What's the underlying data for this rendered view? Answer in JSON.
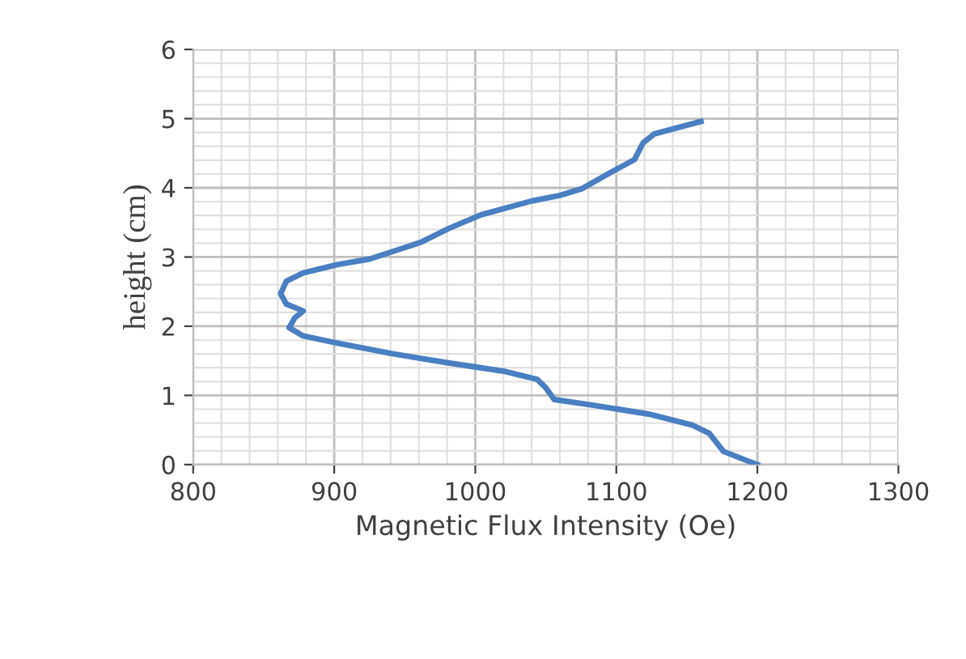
{
  "chart_data": {
    "type": "line",
    "xlabel": "Magnetic Flux Intensity (Oe)",
    "ylabel": "height (cm)",
    "x": [
      1200,
      1176,
      1166,
      1154,
      1123,
      1083,
      1056,
      1050,
      1044,
      1020,
      981,
      942,
      901,
      878,
      868,
      872,
      878,
      866,
      862,
      866,
      878,
      902,
      925,
      961,
      981,
      1004,
      1040,
      1060,
      1076,
      1095,
      1113,
      1119,
      1127,
      1160
    ],
    "series": [
      {
        "color": "#4a7fc1",
        "values": [
          0,
          0.19,
          0.45,
          0.57,
          0.73,
          0.86,
          0.94,
          1.11,
          1.23,
          1.35,
          1.47,
          1.6,
          1.76,
          1.86,
          1.98,
          2.12,
          2.22,
          2.32,
          2.47,
          2.65,
          2.77,
          2.89,
          2.97,
          3.21,
          3.41,
          3.61,
          3.81,
          3.89,
          3.99,
          4.21,
          4.41,
          4.65,
          4.78,
          4.96
        ]
      }
    ],
    "xlim": [
      800,
      1300
    ],
    "xticks": [
      800,
      900,
      1000,
      1100,
      1200,
      1300
    ],
    "ylim": [
      0,
      6
    ],
    "yticks": [
      0,
      1,
      2,
      3,
      4,
      5,
      6
    ],
    "grid": true,
    "marker": "none",
    "line_style": "solid",
    "legend": false
  }
}
